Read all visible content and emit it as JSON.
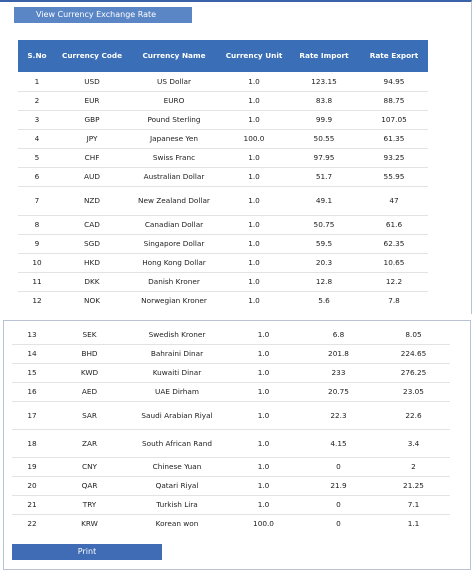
{
  "header": {
    "title": "View Currency Exchange Rate"
  },
  "table": {
    "columns": [
      "S.No",
      "Currency Code",
      "Currency Name",
      "Currency Unit",
      "Rate Import",
      "Rate Export"
    ],
    "rows_part1": [
      [
        "1",
        "USD",
        "US Dollar",
        "1.0",
        "123.15",
        "94.95"
      ],
      [
        "2",
        "EUR",
        "EURO",
        "1.0",
        "83.8",
        "88.75"
      ],
      [
        "3",
        "GBP",
        "Pound Sterling",
        "1.0",
        "99.9",
        "107.05"
      ],
      [
        "4",
        "JPY",
        "Japanese Yen",
        "100.0",
        "50.55",
        "61.35"
      ],
      [
        "5",
        "CHF",
        "Swiss Franc",
        "1.0",
        "97.95",
        "93.25"
      ],
      [
        "6",
        "AUD",
        "Australian Dollar",
        "1.0",
        "51.7",
        "55.95"
      ],
      [
        "7",
        "NZD",
        "New Zealand Dollar",
        "1.0",
        "49.1",
        "47"
      ],
      [
        "8",
        "CAD",
        "Canadian Dollar",
        "1.0",
        "50.75",
        "61.6"
      ],
      [
        "9",
        "SGD",
        "Singapore Dollar",
        "1.0",
        "59.5",
        "62.35"
      ],
      [
        "10",
        "HKD",
        "Hong Kong Dollar",
        "1.0",
        "20.3",
        "10.65"
      ],
      [
        "11",
        "DKK",
        "Danish Kroner",
        "1.0",
        "12.8",
        "12.2"
      ],
      [
        "12",
        "NOK",
        "Norwegian Kroner",
        "1.0",
        "5.6",
        "7.8"
      ]
    ],
    "rows_part2": [
      [
        "13",
        "SEK",
        "Swedish Kroner",
        "1.0",
        "6.8",
        "8.05"
      ],
      [
        "14",
        "BHD",
        "Bahraini Dinar",
        "1.0",
        "201.8",
        "224.65"
      ],
      [
        "15",
        "KWD",
        "Kuwaiti Dinar",
        "1.0",
        "233",
        "276.25"
      ],
      [
        "16",
        "AED",
        "UAE Dirham",
        "1.0",
        "20.75",
        "23.05"
      ],
      [
        "17",
        "SAR",
        "Saudi Arabian Riyal",
        "1.0",
        "22.3",
        "22.6"
      ],
      [
        "18",
        "ZAR",
        "South African Rand",
        "1.0",
        "4.15",
        "3.4"
      ],
      [
        "19",
        "CNY",
        "Chinese Yuan",
        "1.0",
        "0",
        "2"
      ],
      [
        "20",
        "QAR",
        "Qatari Riyal",
        "1.0",
        "21.9",
        "21.25"
      ],
      [
        "21",
        "TRY",
        "Turkish Lira",
        "1.0",
        "0",
        "7.1"
      ],
      [
        "22",
        "KRW",
        "Korean won",
        "100.0",
        "0",
        "1.1"
      ]
    ]
  },
  "actions": {
    "print_label": "Print"
  },
  "colors": {
    "header_blue": "#3a6eb6",
    "button_light": "#5b86c5",
    "button_dark": "#3f6cb5"
  }
}
